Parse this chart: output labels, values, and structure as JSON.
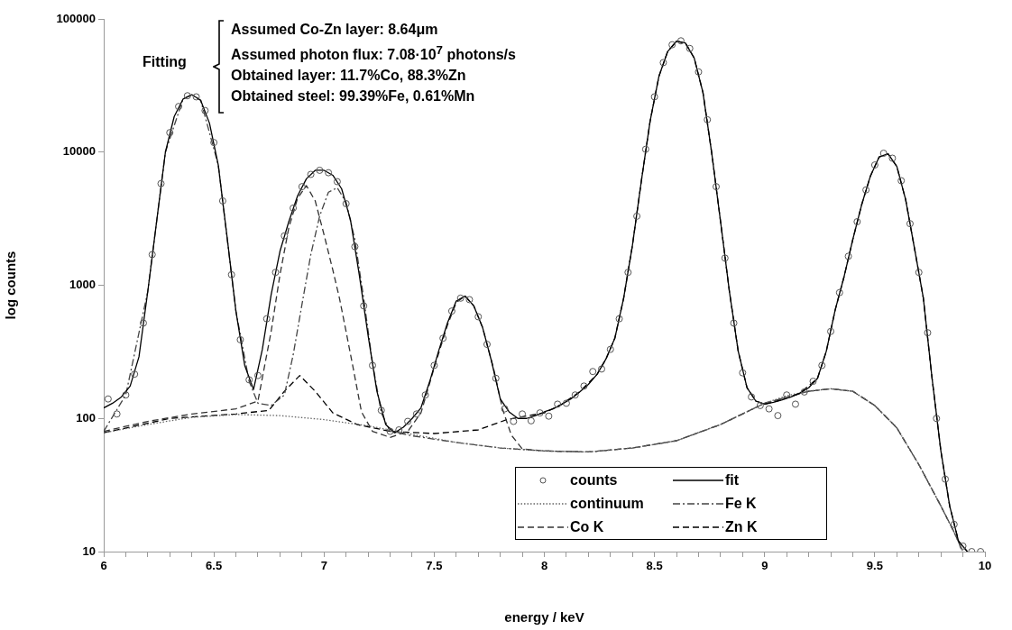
{
  "chart_data": {
    "type": "line",
    "xlabel": "energy / keV",
    "ylabel": "log counts",
    "log": "y",
    "grid": false,
    "legend": "bottom right",
    "xlim": [
      6,
      10
    ],
    "ylim": [
      10,
      100000
    ],
    "xticks": [
      6,
      {
        "value": 6.1,
        "label": null
      },
      {
        "value": 6.2,
        "label": null
      },
      {
        "value": 6.3,
        "label": null
      },
      {
        "value": 6.4,
        "label": null
      },
      6.5,
      {
        "value": 6.6,
        "label": null
      },
      {
        "value": 6.7,
        "label": null
      },
      {
        "value": 6.8,
        "label": null
      },
      {
        "value": 6.9,
        "label": null
      },
      7,
      {
        "value": 7.1,
        "label": null
      },
      {
        "value": 7.2,
        "label": null
      },
      {
        "value": 7.3,
        "label": null
      },
      {
        "value": 7.4,
        "label": null
      },
      7.5,
      {
        "value": 7.6,
        "label": null
      },
      {
        "value": 7.7,
        "label": null
      },
      {
        "value": 7.8,
        "label": null
      },
      {
        "value": 7.9,
        "label": null
      },
      8,
      {
        "value": 8.1,
        "label": null
      },
      {
        "value": 8.2,
        "label": null
      },
      {
        "value": 8.3,
        "label": null
      },
      {
        "value": 8.4,
        "label": null
      },
      8.5,
      {
        "value": 8.6,
        "label": null
      },
      {
        "value": 8.7,
        "label": null
      },
      {
        "value": 8.8,
        "label": null
      },
      {
        "value": 8.9,
        "label": null
      },
      9,
      {
        "value": 9.1,
        "label": null
      },
      {
        "value": 9.2,
        "label": null
      },
      {
        "value": 9.3,
        "label": null
      },
      {
        "value": 9.4,
        "label": null
      },
      9.5,
      {
        "value": 9.6,
        "label": null
      },
      {
        "value": 9.7,
        "label": null
      },
      {
        "value": 9.8,
        "label": null
      },
      {
        "value": 9.9,
        "label": null
      },
      10
    ],
    "yticks": [
      10,
      100,
      1000,
      10000,
      100000
    ],
    "annotations": [
      "Fitting",
      "Assumed Co-Zn layer: 8.64μm",
      "Assumed photon flux: 7.08·10$^{7}$ photons/s",
      "Obtained layer: 11.7%Co, 88.3%Zn",
      "Obtained steel: 99.39%Fe, 0.61%Mn"
    ],
    "series": [
      {
        "name": "counts",
        "type": "scatter",
        "marker": "circle",
        "color": "#555555",
        "x": [
          6.02,
          6.06,
          6.1,
          6.14,
          6.18,
          6.22,
          6.26,
          6.3,
          6.34,
          6.38,
          6.42,
          6.46,
          6.5,
          6.54,
          6.58,
          6.62,
          6.66,
          6.7,
          6.74,
          6.78,
          6.82,
          6.86,
          6.9,
          6.94,
          6.98,
          7.02,
          7.06,
          7.1,
          7.14,
          7.18,
          7.22,
          7.26,
          7.3,
          7.34,
          7.38,
          7.42,
          7.46,
          7.5,
          7.54,
          7.58,
          7.62,
          7.66,
          7.7,
          7.74,
          7.78,
          7.82,
          7.86,
          7.9,
          7.94,
          7.98,
          8.02,
          8.06,
          8.1,
          8.14,
          8.18,
          8.22,
          8.26,
          8.3,
          8.34,
          8.38,
          8.42,
          8.46,
          8.5,
          8.54,
          8.58,
          8.62,
          8.66,
          8.7,
          8.74,
          8.78,
          8.82,
          8.86,
          8.9,
          8.94,
          8.98,
          9.02,
          9.06,
          9.1,
          9.14,
          9.18,
          9.22,
          9.26,
          9.3,
          9.34,
          9.38,
          9.42,
          9.46,
          9.5,
          9.54,
          9.58,
          9.62,
          9.66,
          9.7,
          9.74,
          9.78,
          9.82,
          9.86,
          9.9,
          9.94,
          9.98
        ],
        "values": [
          140,
          108,
          150,
          215,
          520,
          1700,
          5800,
          14000,
          22000,
          26500,
          26000,
          20500,
          11800,
          4300,
          1200,
          390,
          195,
          210,
          560,
          1250,
          2350,
          3800,
          5500,
          6800,
          7300,
          7000,
          6000,
          4100,
          1950,
          700,
          250,
          115,
          80,
          82,
          95,
          108,
          150,
          250,
          400,
          640,
          800,
          780,
          580,
          360,
          200,
          118,
          95,
          108,
          96,
          110,
          104,
          128,
          130,
          150,
          175,
          225,
          235,
          330,
          560,
          1250,
          3300,
          10500,
          26000,
          47000,
          64000,
          68500,
          60000,
          40000,
          17500,
          5500,
          1600,
          520,
          220,
          145,
          125,
          118,
          105,
          150,
          128,
          158,
          190,
          250,
          450,
          880,
          1650,
          3000,
          5200,
          8000,
          9800,
          9000,
          6100,
          2900,
          1250,
          440,
          100,
          35,
          16,
          11,
          10,
          10
        ]
      },
      {
        "name": "fit",
        "type": "line",
        "line_style": "solid",
        "color": "#000000",
        "x": [
          6,
          6.04,
          6.08,
          6.12,
          6.16,
          6.2,
          6.24,
          6.28,
          6.32,
          6.36,
          6.4,
          6.44,
          6.48,
          6.52,
          6.56,
          6.6,
          6.64,
          6.68,
          6.72,
          6.76,
          6.8,
          6.84,
          6.88,
          6.92,
          6.96,
          7,
          7.04,
          7.08,
          7.12,
          7.16,
          7.2,
          7.24,
          7.28,
          7.32,
          7.36,
          7.4,
          7.44,
          7.48,
          7.52,
          7.56,
          7.6,
          7.64,
          7.68,
          7.72,
          7.76,
          7.8,
          7.84,
          7.88,
          7.92,
          7.96,
          8,
          8.04,
          8.08,
          8.12,
          8.16,
          8.2,
          8.24,
          8.28,
          8.32,
          8.36,
          8.4,
          8.44,
          8.48,
          8.52,
          8.56,
          8.6,
          8.64,
          8.68,
          8.72,
          8.76,
          8.8,
          8.84,
          8.88,
          8.92,
          8.96,
          9,
          9.04,
          9.08,
          9.12,
          9.16,
          9.2,
          9.24,
          9.28,
          9.32,
          9.36,
          9.4,
          9.44,
          9.48,
          9.52,
          9.56,
          9.6,
          9.64,
          9.68,
          9.72,
          9.76,
          9.8,
          9.84,
          9.88,
          9.92
        ],
        "values": [
          120,
          130,
          145,
          175,
          290,
          900,
          3000,
          10000,
          18500,
          25000,
          27000,
          24500,
          16500,
          8000,
          2300,
          640,
          250,
          165,
          330,
          850,
          1800,
          3000,
          4700,
          6300,
          7300,
          7300,
          6700,
          5300,
          3100,
          1200,
          420,
          160,
          90,
          78,
          86,
          100,
          120,
          190,
          320,
          520,
          760,
          830,
          700,
          480,
          270,
          140,
          112,
          100,
          100,
          105,
          112,
          118,
          128,
          140,
          158,
          180,
          215,
          280,
          400,
          800,
          2000,
          6000,
          17000,
          37000,
          57000,
          68000,
          66000,
          51000,
          28000,
          9800,
          3000,
          900,
          320,
          170,
          135,
          128,
          132,
          138,
          145,
          155,
          170,
          200,
          320,
          650,
          1150,
          2200,
          4000,
          6600,
          9200,
          9700,
          7800,
          4400,
          1900,
          810,
          200,
          57,
          22,
          12,
          10
        ]
      },
      {
        "name": "continuum",
        "type": "line",
        "line_style": "dotted",
        "color": "#666666",
        "x": [
          6,
          6.2,
          6.4,
          6.6,
          6.8,
          7,
          7.2,
          7.4,
          7.6,
          7.8,
          8,
          8.2,
          8.4,
          8.6,
          8.8,
          9,
          9.1,
          9.2,
          9.3,
          9.4,
          9.5,
          9.6,
          9.7,
          9.8,
          9.86,
          9.9
        ],
        "values": [
          78,
          90,
          102,
          107,
          105,
          98,
          88,
          76,
          66,
          60,
          57,
          56,
          60,
          68,
          90,
          130,
          148,
          160,
          167,
          160,
          125,
          85,
          45,
          22,
          14,
          10
        ]
      },
      {
        "name": "Fe K",
        "type": "line",
        "line_style": "dashdot",
        "color": "#444444",
        "x": [
          6,
          6.1,
          6.2,
          6.28,
          6.36,
          6.4,
          6.44,
          6.52,
          6.6,
          6.66,
          6.7,
          6.76,
          6.82,
          6.86,
          6.9,
          6.94,
          6.98,
          7.02,
          7.06,
          7.1,
          7.14,
          7.18,
          7.22,
          7.26,
          7.3,
          7.4,
          7.6,
          7.8,
          8,
          8.2,
          8.4,
          8.6,
          8.8,
          9,
          9.2,
          9.3,
          9.4,
          9.5,
          9.6,
          9.7,
          9.8,
          9.86,
          9.9
        ],
        "values": [
          80,
          150,
          900,
          10000,
          25000,
          27000,
          24500,
          8000,
          640,
          190,
          130,
          125,
          150,
          300,
          720,
          1700,
          3300,
          5000,
          5400,
          4200,
          2200,
          800,
          260,
          110,
          80,
          74,
          66,
          60,
          57,
          56,
          60,
          68,
          90,
          130,
          160,
          167,
          160,
          125,
          85,
          45,
          22,
          14,
          10
        ]
      },
      {
        "name": "Co K",
        "type": "line",
        "line_style": "dashed",
        "color": "#333333",
        "x": [
          6,
          6.2,
          6.4,
          6.6,
          6.7,
          6.76,
          6.8,
          6.84,
          6.88,
          6.92,
          6.96,
          7,
          7.04,
          7.07,
          7.1,
          7.13,
          7.17,
          7.22,
          7.3,
          7.38,
          7.44,
          7.5,
          7.56,
          7.6,
          7.64,
          7.68,
          7.72,
          7.77,
          7.81,
          7.85,
          7.9,
          8,
          8.2,
          8.4,
          8.6,
          8.8,
          9,
          9.2,
          9.3,
          9.4,
          9.5,
          9.6,
          9.7,
          9.8,
          9.86,
          9.9
        ],
        "values": [
          80,
          95,
          108,
          118,
          135,
          450,
          1200,
          2700,
          4500,
          5600,
          4300,
          2400,
          1300,
          800,
          450,
          250,
          112,
          80,
          72,
          80,
          110,
          240,
          500,
          740,
          830,
          700,
          480,
          235,
          118,
          75,
          59,
          57,
          56,
          60,
          68,
          90,
          130,
          160,
          167,
          160,
          125,
          85,
          45,
          22,
          14,
          10
        ]
      },
      {
        "name": "Zn K",
        "type": "line",
        "line_style": "dashed",
        "color": "#000000",
        "x": [
          6,
          6.3,
          6.6,
          6.75,
          6.82,
          6.89,
          6.96,
          7.04,
          7.15,
          7.3,
          7.5,
          7.7,
          7.83,
          7.9,
          8,
          8.08,
          8.16,
          8.24,
          8.28,
          8.32,
          8.36,
          8.4,
          8.44,
          8.48,
          8.52,
          8.56,
          8.6,
          8.64,
          8.68,
          8.72,
          8.76,
          8.8,
          8.84,
          8.88,
          8.92,
          8.96,
          9,
          9.08,
          9.16,
          9.24,
          9.28,
          9.32,
          9.36,
          9.4,
          9.44,
          9.48,
          9.52,
          9.56,
          9.6,
          9.64,
          9.68,
          9.72,
          9.76,
          9.8,
          9.84,
          9.88,
          9.92
        ],
        "values": [
          78,
          100,
          108,
          115,
          160,
          210,
          160,
          110,
          90,
          80,
          77,
          82,
          98,
          103,
          110,
          128,
          158,
          215,
          280,
          400,
          800,
          2000,
          6000,
          17000,
          37000,
          57000,
          68000,
          66000,
          51000,
          28000,
          9800,
          3000,
          900,
          320,
          170,
          135,
          128,
          138,
          155,
          200,
          320,
          650,
          1150,
          2200,
          4000,
          6600,
          9200,
          9700,
          7800,
          4400,
          1900,
          810,
          200,
          57,
          22,
          12,
          10
        ]
      }
    ]
  }
}
